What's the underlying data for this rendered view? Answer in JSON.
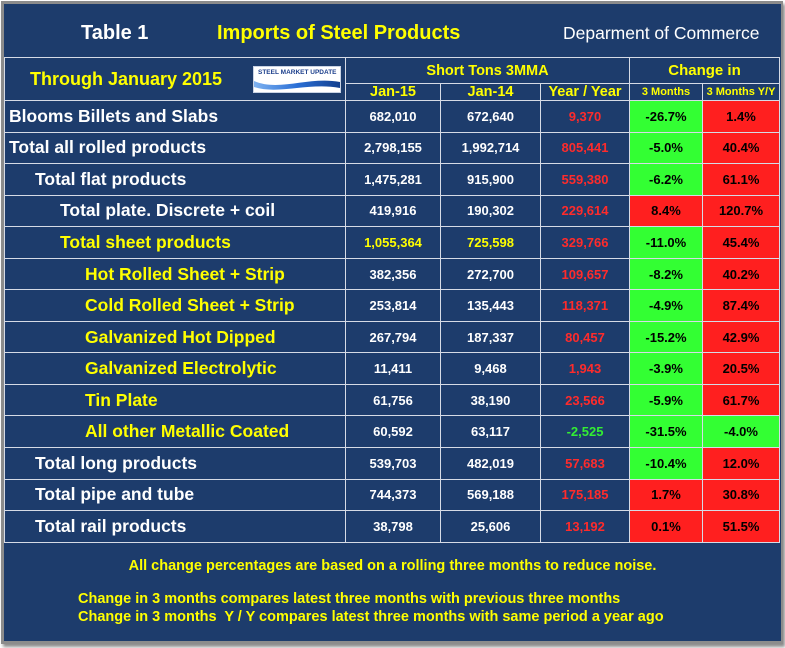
{
  "chart_data": {
    "type": "table",
    "table_label": "Table 1",
    "title": "Imports of Steel Products",
    "source": "Deparment of Commerce",
    "period": "Through January 2015",
    "column_groups": [
      "Short Tons 3MMA",
      "Change in"
    ],
    "columns": [
      "Jan-15",
      "Jan-14",
      "Year / Year",
      "3 Months",
      "3 Months Y/Y"
    ],
    "rows": [
      {
        "label": "Blooms Billets and Slabs",
        "jan15": "682,010",
        "jan14": "672,640",
        "year_over_year": "9,370",
        "change_3m": "-26.7%",
        "change_3m_yy": "1.4%"
      },
      {
        "label": "Total all rolled products",
        "jan15": "2,798,155",
        "jan14": "1,992,714",
        "year_over_year": "805,441",
        "change_3m": "-5.0%",
        "change_3m_yy": "40.4%"
      },
      {
        "label": "Total flat products",
        "jan15": "1,475,281",
        "jan14": "915,900",
        "year_over_year": "559,380",
        "change_3m": "-6.2%",
        "change_3m_yy": "61.1%"
      },
      {
        "label": "Total plate. Discrete + coil",
        "jan15": "419,916",
        "jan14": "190,302",
        "year_over_year": "229,614",
        "change_3m": "8.4%",
        "change_3m_yy": "120.7%"
      },
      {
        "label": "Total sheet products",
        "jan15": "1,055,364",
        "jan14": "725,598",
        "year_over_year": "329,766",
        "change_3m": "-11.0%",
        "change_3m_yy": "45.4%"
      },
      {
        "label": "Hot Rolled Sheet + Strip",
        "jan15": "382,356",
        "jan14": "272,700",
        "year_over_year": "109,657",
        "change_3m": "-8.2%",
        "change_3m_yy": "40.2%"
      },
      {
        "label": "Cold Rolled Sheet + Strip",
        "jan15": "253,814",
        "jan14": "135,443",
        "year_over_year": "118,371",
        "change_3m": "-4.9%",
        "change_3m_yy": "87.4%"
      },
      {
        "label": "Galvanized Hot Dipped",
        "jan15": "267,794",
        "jan14": "187,337",
        "year_over_year": "80,457",
        "change_3m": "-15.2%",
        "change_3m_yy": "42.9%"
      },
      {
        "label": "Galvanized Electrolytic",
        "jan15": "11,411",
        "jan14": "9,468",
        "year_over_year": "1,943",
        "change_3m": "-3.9%",
        "change_3m_yy": "20.5%"
      },
      {
        "label": "Tin Plate",
        "jan15": "61,756",
        "jan14": "38,190",
        "year_over_year": "23,566",
        "change_3m": "-5.9%",
        "change_3m_yy": "61.7%"
      },
      {
        "label": "All other Metallic Coated",
        "jan15": "60,592",
        "jan14": "63,117",
        "year_over_year": "-2,525",
        "change_3m": "-31.5%",
        "change_3m_yy": "-4.0%"
      },
      {
        "label": "Total long products",
        "jan15": "539,703",
        "jan14": "482,019",
        "year_over_year": "57,683",
        "change_3m": "-10.4%",
        "change_3m_yy": "12.0%"
      },
      {
        "label": "Total pipe and tube",
        "jan15": "744,373",
        "jan14": "569,188",
        "year_over_year": "175,185",
        "change_3m": "1.7%",
        "change_3m_yy": "30.8%"
      },
      {
        "label": "Total rail products",
        "jan15": "38,798",
        "jan14": "25,606",
        "year_over_year": "13,192",
        "change_3m": "0.1%",
        "change_3m_yy": "51.5%"
      }
    ],
    "notes": [
      "All change percentages are based on a rolling three months to reduce noise.",
      "Change in 3 months compares latest three months with previous three months",
      "Change in 3 months  Y / Y compares latest three months with same period a year ago"
    ]
  },
  "logo": {
    "word_bold": "STEEL",
    "word_rest": "MARKET UPDATE"
  },
  "colors": {
    "panel": "#1d3c6c",
    "accent_text": "#ffff00",
    "label_text": "#ffffff",
    "increase_bg": "#ff1f1f",
    "decrease_bg": "#33ff33",
    "increase_text": "#ff2b2b",
    "decrease_text": "#33ee33",
    "grid_line": "#d6dbe6"
  }
}
